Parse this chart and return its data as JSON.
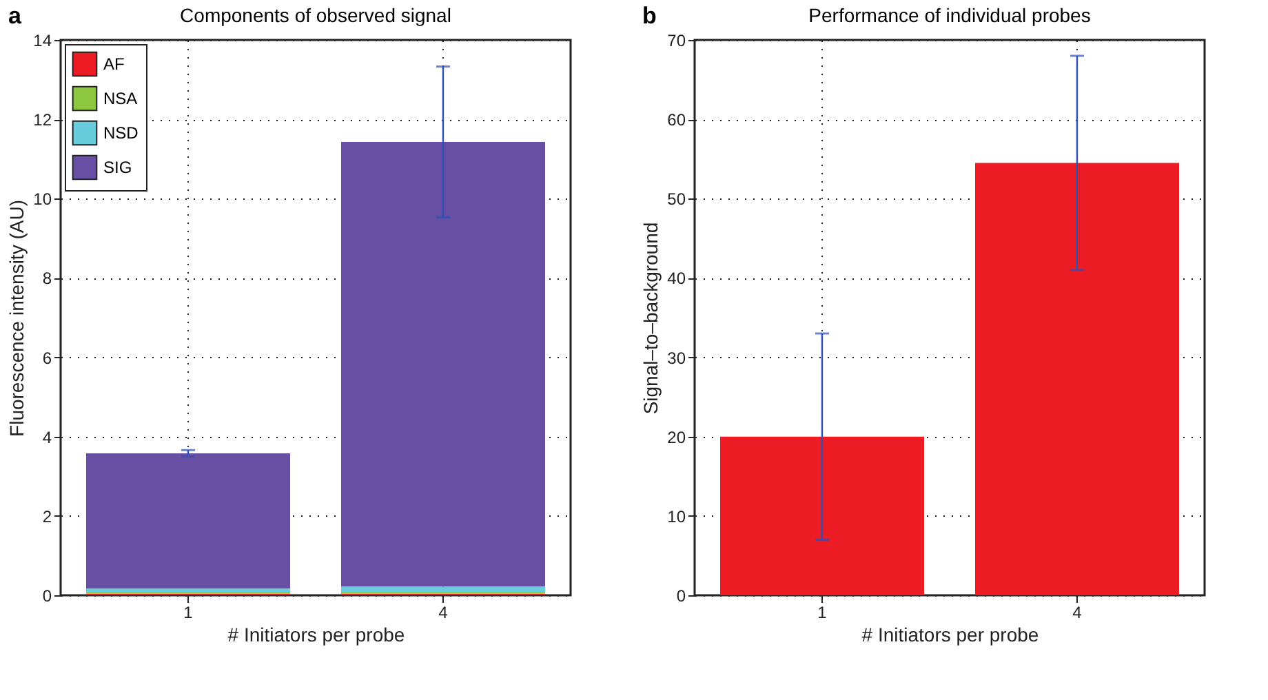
{
  "chart_data": [
    {
      "type": "bar",
      "title": "Components of observed signal",
      "xlabel": "# Initiators per probe",
      "ylabel": "Fluorescence intensity (AU)",
      "annotations": [
        "a"
      ],
      "categories": [
        "1",
        "4"
      ],
      "stacked": true,
      "series": [
        {
          "name": "AF",
          "color": "#ed1c24",
          "values": [
            0.04,
            0.04
          ]
        },
        {
          "name": "NSA",
          "color": "#8dc63f",
          "values": [
            0.03,
            0.03
          ]
        },
        {
          "name": "NSD",
          "color": "#67ccdb",
          "values": [
            0.1,
            0.15
          ]
        },
        {
          "name": "SIG",
          "color": "#6750a4",
          "values": [
            3.41,
            11.21
          ],
          "errors": [
            0.08,
            1.9
          ]
        }
      ],
      "ylim": [
        0,
        14
      ],
      "yticks": [
        0,
        2,
        4,
        6,
        8,
        10,
        12,
        14
      ],
      "grid": true,
      "legend": "top left"
    },
    {
      "type": "bar",
      "title": "Performance of individual probes",
      "xlabel": "# Initiators per probe",
      "ylabel": "Signal–to–background",
      "annotations": [
        "b"
      ],
      "categories": [
        "1",
        "4"
      ],
      "series": [
        {
          "color": "#ed1c24",
          "values": [
            20,
            54.5
          ],
          "errors": [
            [
              7,
              33
            ],
            [
              41,
              68
            ]
          ]
        }
      ],
      "ylim": [
        0,
        70
      ],
      "yticks": [
        0,
        10,
        20,
        30,
        40,
        50,
        60,
        70
      ],
      "grid": true
    }
  ]
}
